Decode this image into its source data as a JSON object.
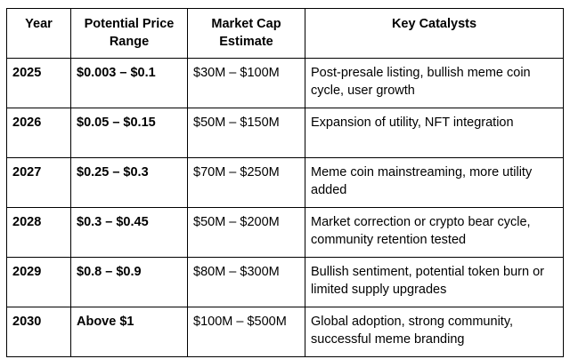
{
  "headers": [
    "Year",
    "Potential Price Range",
    "Market Cap Estimate",
    "Key Catalysts"
  ],
  "rows": [
    [
      "2025",
      "$0.003 – $0.1",
      "$30M – $100M",
      "Post-presale listing, bullish meme coin cycle, user growth"
    ],
    [
      "2026",
      "$0.05 – $0.15",
      "$50M – $150M",
      "Expansion of utility, NFT integration"
    ],
    [
      "2027",
      "$0.25 – $0.3",
      "$70M – $250M",
      "Meme coin mainstreaming, more utility added"
    ],
    [
      "2028",
      "$0.3 – $0.45",
      "$50M – $200M",
      "Market correction or crypto bear cycle, community retention tested"
    ],
    [
      "2029",
      "$0.8 – $0.9",
      "$80M – $300M",
      "Bullish sentiment, potential token burn or limited supply upgrades"
    ],
    [
      "2030",
      "Above $1",
      "$100M – $500M",
      "Global adoption, strong community, successful meme branding"
    ]
  ]
}
